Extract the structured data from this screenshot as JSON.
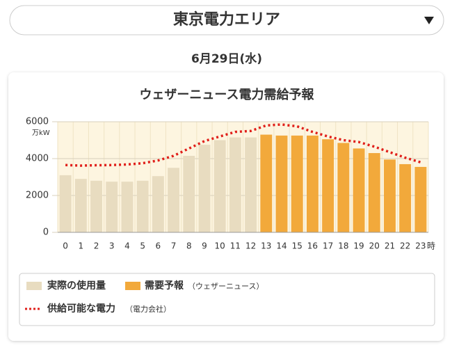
{
  "area_selector": {
    "label": "東京電力エリア"
  },
  "date": "6月29日(水)",
  "chart_data": {
    "type": "bar_line",
    "title": "ウェザーニュース電力需給予報",
    "y_unit": "万kW",
    "x_unit": "時",
    "categories": [
      "0",
      "1",
      "2",
      "3",
      "4",
      "5",
      "6",
      "7",
      "8",
      "9",
      "10",
      "11",
      "12",
      "13",
      "14",
      "15",
      "16",
      "17",
      "18",
      "19",
      "20",
      "21",
      "22",
      "23"
    ],
    "ylim": [
      0,
      6000
    ],
    "yticks": [
      0,
      2000,
      4000,
      6000
    ],
    "grid": true,
    "series": [
      {
        "name": "実際の使用量",
        "kind": "bar",
        "color": "#e8dcc0",
        "values": [
          3100,
          2900,
          2800,
          2750,
          2750,
          2800,
          3050,
          3500,
          4150,
          4750,
          5000,
          5150,
          5150,
          null,
          null,
          null,
          null,
          null,
          null,
          null,
          null,
          null,
          null,
          null
        ]
      },
      {
        "name": "需要予報",
        "note": "（ウェザーニュース）",
        "kind": "bar",
        "color": "#f2a93b",
        "values": [
          null,
          null,
          null,
          null,
          null,
          null,
          null,
          null,
          null,
          null,
          null,
          null,
          null,
          5300,
          5250,
          5250,
          5250,
          5050,
          4850,
          4550,
          4300,
          3950,
          3700,
          3550
        ]
      },
      {
        "name": "供給可能な電力",
        "note": "（電力会社）",
        "kind": "line",
        "color": "#e0201b",
        "values": [
          3650,
          3620,
          3640,
          3650,
          3680,
          3750,
          3900,
          4150,
          4550,
          4950,
          5200,
          5450,
          5500,
          5800,
          5850,
          5750,
          5450,
          5200,
          5000,
          4900,
          4650,
          4350,
          4050,
          3800
        ]
      }
    ]
  }
}
